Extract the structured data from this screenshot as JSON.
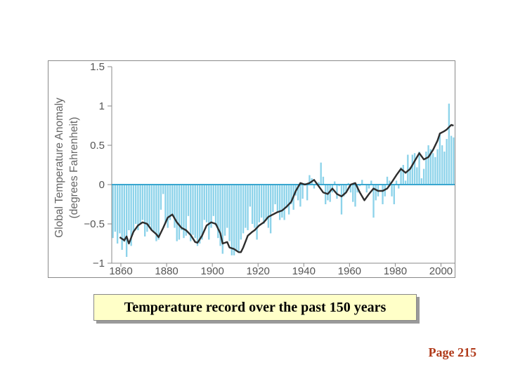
{
  "chart_data": {
    "type": "bar",
    "ylabel_lines": [
      "Global Temperature Anomaly",
      "(degrees Fahrenheit)"
    ],
    "xlim": [
      1856,
      2006
    ],
    "ylim": [
      -1,
      1.5
    ],
    "xticks": [
      1860,
      1880,
      1900,
      1920,
      1940,
      1960,
      1980,
      2000
    ],
    "yticks": [
      {
        "value": 1.5,
        "label": "1.5"
      },
      {
        "value": 1,
        "label": "1"
      },
      {
        "value": 0.5,
        "label": "0.5"
      },
      {
        "value": 0,
        "label": "0"
      },
      {
        "value": -0.5,
        "label": "−0.5"
      },
      {
        "value": -1,
        "label": "−1"
      }
    ],
    "bar_color": "#8dd3ea",
    "zero_line_color": "#3aa6cf",
    "smooth_color": "#2d2d2d",
    "years_start": 1856,
    "annual": [
      -0.68,
      -0.6,
      -0.75,
      -0.62,
      -0.83,
      -0.73,
      -0.92,
      -0.58,
      -0.78,
      -0.6,
      -0.5,
      -0.58,
      -0.5,
      -0.45,
      -0.66,
      -0.6,
      -0.52,
      -0.58,
      -0.6,
      -0.72,
      -0.7,
      -0.32,
      -0.12,
      -0.48,
      -0.55,
      -0.45,
      -0.4,
      -0.55,
      -0.72,
      -0.7,
      -0.58,
      -0.68,
      -0.65,
      -0.4,
      -0.72,
      -0.64,
      -0.68,
      -0.78,
      -0.75,
      -0.7,
      -0.45,
      -0.48,
      -0.7,
      -0.55,
      -0.4,
      -0.52,
      -0.68,
      -0.78,
      -0.88,
      -0.65,
      -0.55,
      -0.72,
      -0.9,
      -0.9,
      -0.85,
      -0.85,
      -0.7,
      -0.62,
      -0.55,
      -0.58,
      -0.28,
      -0.5,
      -0.55,
      -0.7,
      -0.48,
      -0.42,
      -0.5,
      -0.45,
      -0.55,
      -0.62,
      -0.35,
      -0.25,
      -0.35,
      -0.45,
      -0.42,
      -0.45,
      -0.3,
      -0.38,
      -0.25,
      -0.32,
      -0.14,
      -0.2,
      -0.28,
      -0.18,
      0.02,
      -0.2,
      0.12,
      0.08,
      -0.05,
      0.02,
      0.03,
      0.28,
      0.1,
      -0.25,
      -0.2,
      -0.22,
      -0.1,
      0.04,
      -0.18,
      -0.02,
      -0.38,
      -0.15,
      -0.1,
      0.02,
      -0.1,
      -0.22,
      -0.28,
      -0.1,
      -0.02,
      0.06,
      0.0,
      -0.1,
      -0.05,
      0.05,
      -0.42,
      -0.2,
      -0.15,
      0.0,
      -0.25,
      -0.15,
      0.1,
      0.05,
      -0.15,
      -0.25,
      0.05,
      -0.05,
      0.22,
      0.25,
      0.05,
      0.38,
      0.22,
      0.38,
      0.4,
      0.22,
      0.42,
      0.08,
      0.2,
      0.42,
      0.5,
      0.45,
      0.4,
      0.35,
      0.45,
      0.65,
      0.5,
      0.42,
      0.58,
      1.03,
      0.62,
      0.6,
      0.82,
      0.85,
      0.85,
      0.8
    ],
    "smoothed": [
      [
        1859,
        -0.67
      ],
      [
        1861,
        -0.71
      ],
      [
        1862,
        -0.66
      ],
      [
        1863,
        -0.75
      ],
      [
        1865,
        -0.6
      ],
      [
        1867,
        -0.52
      ],
      [
        1869,
        -0.48
      ],
      [
        1871,
        -0.5
      ],
      [
        1873,
        -0.58
      ],
      [
        1875,
        -0.63
      ],
      [
        1876,
        -0.67
      ],
      [
        1878,
        -0.55
      ],
      [
        1880,
        -0.42
      ],
      [
        1882,
        -0.38
      ],
      [
        1884,
        -0.48
      ],
      [
        1886,
        -0.55
      ],
      [
        1888,
        -0.58
      ],
      [
        1890,
        -0.64
      ],
      [
        1892,
        -0.73
      ],
      [
        1893,
        -0.74
      ],
      [
        1895,
        -0.65
      ],
      [
        1897,
        -0.52
      ],
      [
        1899,
        -0.48
      ],
      [
        1901,
        -0.5
      ],
      [
        1903,
        -0.62
      ],
      [
        1904,
        -0.75
      ],
      [
        1906,
        -0.73
      ],
      [
        1907,
        -0.8
      ],
      [
        1909,
        -0.82
      ],
      [
        1911,
        -0.86
      ],
      [
        1912,
        -0.86
      ],
      [
        1913,
        -0.8
      ],
      [
        1915,
        -0.65
      ],
      [
        1917,
        -0.6
      ],
      [
        1918,
        -0.58
      ],
      [
        1920,
        -0.52
      ],
      [
        1922,
        -0.48
      ],
      [
        1924,
        -0.41
      ],
      [
        1926,
        -0.38
      ],
      [
        1928,
        -0.35
      ],
      [
        1930,
        -0.33
      ],
      [
        1932,
        -0.28
      ],
      [
        1934,
        -0.22
      ],
      [
        1936,
        -0.08
      ],
      [
        1938,
        0.02
      ],
      [
        1940,
        0.0
      ],
      [
        1942,
        0.02
      ],
      [
        1944,
        0.06
      ],
      [
        1946,
        -0.02
      ],
      [
        1948,
        -0.1
      ],
      [
        1950,
        -0.12
      ],
      [
        1952,
        -0.05
      ],
      [
        1954,
        -0.12
      ],
      [
        1956,
        -0.15
      ],
      [
        1958,
        -0.1
      ],
      [
        1960,
        0.0
      ],
      [
        1962,
        0.02
      ],
      [
        1964,
        -0.1
      ],
      [
        1966,
        -0.2
      ],
      [
        1968,
        -0.12
      ],
      [
        1970,
        -0.05
      ],
      [
        1972,
        -0.08
      ],
      [
        1974,
        -0.08
      ],
      [
        1976,
        -0.05
      ],
      [
        1978,
        0.03
      ],
      [
        1980,
        0.12
      ],
      [
        1982,
        0.2
      ],
      [
        1984,
        0.15
      ],
      [
        1986,
        0.2
      ],
      [
        1988,
        0.3
      ],
      [
        1990,
        0.4
      ],
      [
        1992,
        0.32
      ],
      [
        1994,
        0.35
      ],
      [
        1996,
        0.44
      ],
      [
        1998,
        0.56
      ],
      [
        1999,
        0.65
      ],
      [
        2001,
        0.68
      ],
      [
        2002,
        0.7
      ],
      [
        2004,
        0.76
      ],
      [
        2005,
        0.75
      ]
    ]
  },
  "caption": "Temperature record over the past 150 years",
  "page_number": "Page 215"
}
